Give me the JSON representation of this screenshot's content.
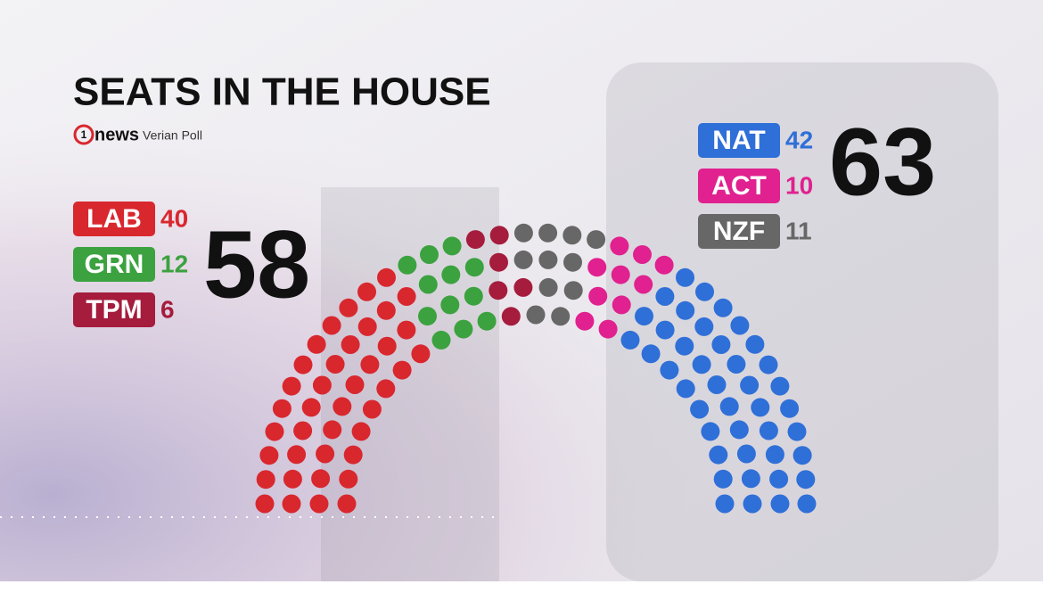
{
  "chart_data": {
    "type": "parliament",
    "title": "SEATS IN THE HOUSE",
    "source": {
      "logo_number": "1",
      "logo_word": "news",
      "poll": "Verian Poll"
    },
    "blocs": [
      {
        "total": 58,
        "parties": [
          {
            "name": "LAB",
            "color": "#d9272e",
            "value": 40
          },
          {
            "name": "GRN",
            "color": "#3ba23f",
            "value": 12
          },
          {
            "name": "TPM",
            "color": "#a51c3c",
            "value": 6
          }
        ]
      },
      {
        "total": 63,
        "parties": [
          {
            "name": "NAT",
            "color": "#2f6fd8",
            "value": 42
          },
          {
            "name": "ACT",
            "color": "#e0218f",
            "value": 10
          },
          {
            "name": "NZF",
            "color": "#676767",
            "value": 11
          }
        ]
      }
    ]
  }
}
